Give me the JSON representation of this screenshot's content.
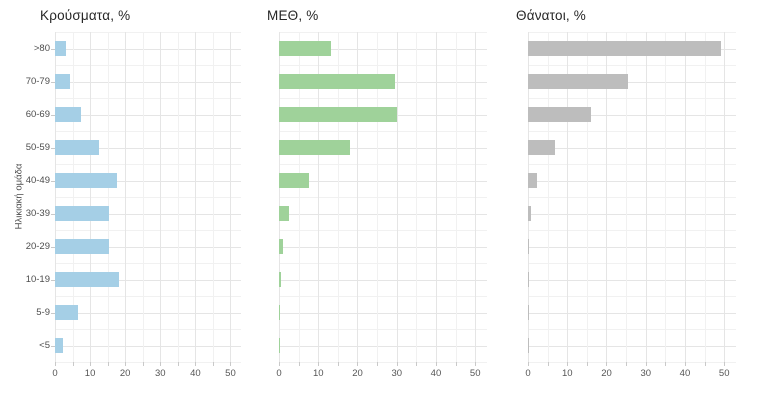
{
  "figure": {
    "y_axis_title": "Ηλικιακή ομάδα"
  },
  "style": {
    "background": "#ffffff",
    "grid_major_color": "#e5e5e5",
    "grid_minor_color": "#f1f1f1",
    "tick_color": "#c9c9c9",
    "axis_text_color": "#555555",
    "title_color": "#262626"
  },
  "chart_data": [
    {
      "type": "bar",
      "orientation": "horizontal",
      "title": "Κρούσματα, %",
      "ylabel": "Ηλικιακή ομάδα",
      "categories": [
        ">80",
        "70-79",
        "60-69",
        "50-59",
        "40-49",
        "30-39",
        "20-29",
        "10-19",
        "5-9",
        "<5"
      ],
      "values": [
        3.0,
        4.2,
        7.5,
        12.5,
        17.7,
        15.4,
        15.4,
        18.2,
        6.5,
        2.4
      ],
      "color": "#a5cfe6",
      "xlim": [
        0,
        53
      ],
      "x_ticks": [
        0,
        10,
        20,
        30,
        40,
        50
      ],
      "grid": true,
      "legend": "none"
    },
    {
      "type": "bar",
      "orientation": "horizontal",
      "title": "ΜΕΘ, %",
      "ylabel": "Ηλικιακή ομάδα",
      "categories": [
        ">80",
        "70-79",
        "60-69",
        "50-59",
        "40-49",
        "30-39",
        "20-29",
        "10-19",
        "5-9",
        "<5"
      ],
      "values": [
        13.3,
        29.5,
        30.0,
        18.0,
        7.7,
        2.5,
        1.0,
        0.4,
        0.2,
        0.2
      ],
      "color": "#9fd29a",
      "xlim": [
        0,
        53
      ],
      "x_ticks": [
        0,
        10,
        20,
        30,
        40,
        50
      ],
      "grid": true,
      "legend": "none"
    },
    {
      "type": "bar",
      "orientation": "horizontal",
      "title": "Θάνατοι, %",
      "ylabel": "Ηλικιακή ομάδα",
      "categories": [
        ">80",
        "70-79",
        "60-69",
        "50-59",
        "40-49",
        "30-39",
        "20-29",
        "10-19",
        "5-9",
        "<5"
      ],
      "values": [
        49.3,
        25.4,
        16.1,
        7.0,
        2.4,
        0.7,
        0.1,
        0.2,
        0.05,
        0.1
      ],
      "color": "#bdbdbd",
      "xlim": [
        0,
        53
      ],
      "x_ticks": [
        0,
        10,
        20,
        30,
        40,
        50
      ],
      "grid": true,
      "legend": "none"
    }
  ]
}
